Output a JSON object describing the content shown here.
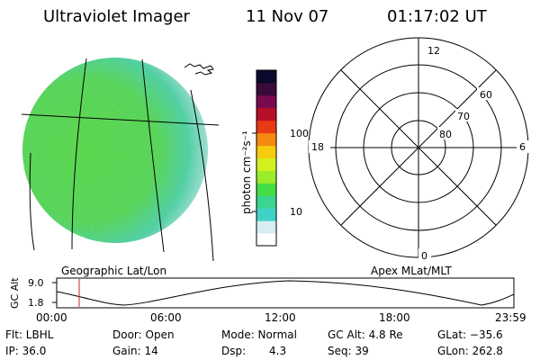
{
  "header": {
    "title": "Ultraviolet Imager",
    "date": "11 Nov 07",
    "time": "01:17:02 UT"
  },
  "colorbar": {
    "units": "photon cm⁻²s⁻¹",
    "ticks": [
      "100",
      "10"
    ],
    "colors": [
      "#ffffff",
      "#d6eef2",
      "#40d2c8",
      "#3ad690",
      "#44dd44",
      "#9aec2a",
      "#d2f01e",
      "#f6cc10",
      "#f58a10",
      "#e83a14",
      "#b8102a",
      "#7a0a4e",
      "#3a0a3a",
      "#0a0a2e"
    ]
  },
  "polar_plot": {
    "lat_labels": [
      "60",
      "70",
      "80"
    ],
    "mlt_labels": [
      "12",
      "18",
      "6",
      "0"
    ]
  },
  "projection_labels": {
    "left": "Geographic Lat/Lon",
    "right": "Apex MLat/MLT"
  },
  "altitude_plot": {
    "ylabel": "GC Alt",
    "yticks": [
      "9.0",
      "1.8"
    ],
    "xticks": [
      "00:00",
      "06:00",
      "12:00",
      "18:00",
      "23:59"
    ]
  },
  "info": {
    "filter": "Flt: LBHL",
    "ip": "IP: 36.0",
    "door": "Door: Open",
    "gain": "Gain: 14",
    "mode": "Mode: Normal",
    "dsp_label": "Dsp:",
    "dsp_value": "4.3",
    "gc_alt": "GC Alt: 4.8 Re",
    "seq": "Seq: 39",
    "glat": "GLat: −35.6",
    "glon": "GLon: 262.8"
  }
}
